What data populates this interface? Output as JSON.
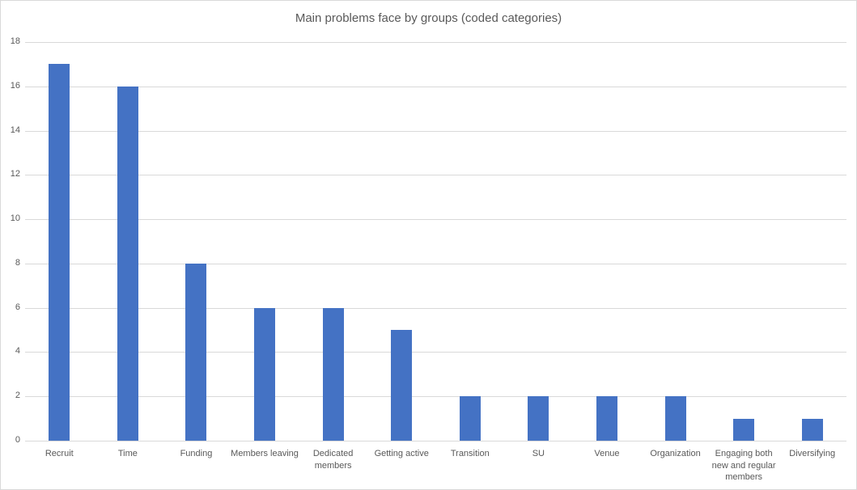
{
  "chart": {
    "title": "Main problems face by groups (coded categories)"
  },
  "chart_data": {
    "type": "bar",
    "title": "Main problems face by groups (coded categories)",
    "categories": [
      "Recruit",
      "Time",
      "Funding",
      "Members leaving",
      "Dedicated members",
      "Getting active",
      "Transition",
      "SU",
      "Venue",
      "Organization",
      "Engaging both new and regular members",
      "Diversifying"
    ],
    "values": [
      17,
      16,
      8,
      6,
      6,
      5,
      2,
      2,
      2,
      2,
      1,
      1
    ],
    "xlabel": "",
    "ylabel": "",
    "ylim": [
      0,
      18
    ],
    "ytick_step": 2,
    "grid": true,
    "legend": false,
    "colors": {
      "bar": "#4472C4",
      "gridline": "#d9d9d9",
      "text": "#595959",
      "frame_border": "#d9d9d9",
      "background": "#ffffff"
    }
  }
}
